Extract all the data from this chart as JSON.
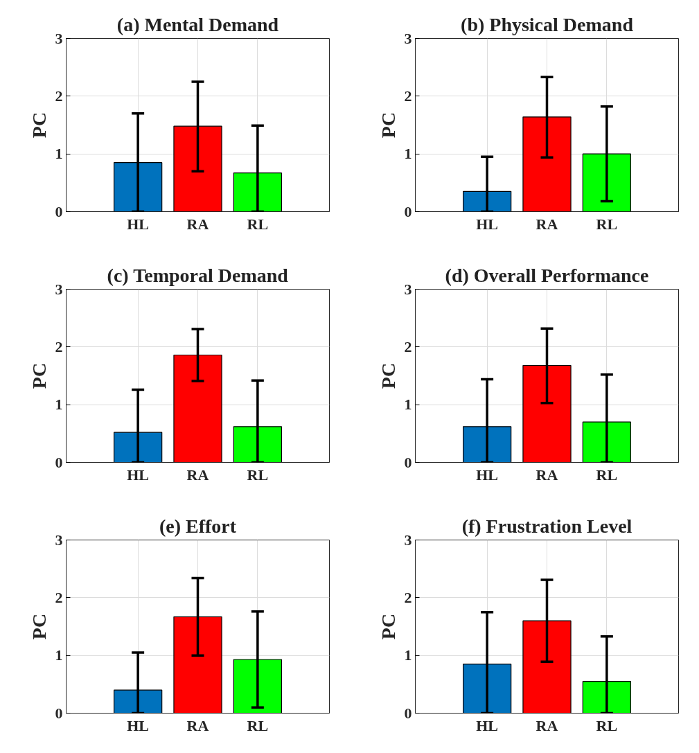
{
  "chart_data": [
    {
      "type": "bar",
      "title": "(a) Mental Demand",
      "ylabel": "PC",
      "categories": [
        "HL",
        "RA",
        "RL"
      ],
      "values": [
        0.85,
        1.48,
        0.67
      ],
      "colors": [
        "#0072bd",
        "#ff0000",
        "#00ff00"
      ],
      "errors": [
        [
          0,
          1.7
        ],
        [
          0.7,
          2.25
        ],
        [
          0,
          1.49
        ]
      ],
      "ylim": [
        0,
        3
      ],
      "yticks": [
        0,
        1,
        2,
        3
      ],
      "grid": true
    },
    {
      "type": "bar",
      "title": "(b) Physical Demand",
      "ylabel": "PC",
      "categories": [
        "HL",
        "RA",
        "RL"
      ],
      "values": [
        0.35,
        1.64,
        1.0
      ],
      "colors": [
        "#0072bd",
        "#ff0000",
        "#00ff00"
      ],
      "errors": [
        [
          0,
          0.95
        ],
        [
          0.94,
          2.33
        ],
        [
          0.18,
          1.82
        ]
      ],
      "ylim": [
        0,
        3
      ],
      "yticks": [
        0,
        1,
        2,
        3
      ],
      "grid": true
    },
    {
      "type": "bar",
      "title": "(c) Temporal Demand",
      "ylabel": "PC",
      "categories": [
        "HL",
        "RA",
        "RL"
      ],
      "values": [
        0.52,
        1.86,
        0.62
      ],
      "colors": [
        "#0072bd",
        "#ff0000",
        "#00ff00"
      ],
      "errors": [
        [
          0,
          1.26
        ],
        [
          1.41,
          2.31
        ],
        [
          0,
          1.42
        ]
      ],
      "ylim": [
        0,
        3
      ],
      "yticks": [
        0,
        1,
        2,
        3
      ],
      "grid": true
    },
    {
      "type": "bar",
      "title": "(d) Overall Performance",
      "ylabel": "PC",
      "categories": [
        "HL",
        "RA",
        "RL"
      ],
      "values": [
        0.62,
        1.68,
        0.7
      ],
      "colors": [
        "#0072bd",
        "#ff0000",
        "#00ff00"
      ],
      "errors": [
        [
          0,
          1.44
        ],
        [
          1.03,
          2.32
        ],
        [
          0,
          1.52
        ]
      ],
      "ylim": [
        0,
        3
      ],
      "yticks": [
        0,
        1,
        2,
        3
      ],
      "grid": true
    },
    {
      "type": "bar",
      "title": "(e) Effort",
      "ylabel": "PC",
      "categories": [
        "HL",
        "RA",
        "RL"
      ],
      "values": [
        0.4,
        1.67,
        0.93
      ],
      "colors": [
        "#0072bd",
        "#ff0000",
        "#00ff00"
      ],
      "errors": [
        [
          0,
          1.05
        ],
        [
          1.0,
          2.34
        ],
        [
          0.1,
          1.76
        ]
      ],
      "ylim": [
        0,
        3
      ],
      "yticks": [
        0,
        1,
        2,
        3
      ],
      "grid": true
    },
    {
      "type": "bar",
      "title": "(f) Frustration Level",
      "ylabel": "PC",
      "categories": [
        "HL",
        "RA",
        "RL"
      ],
      "values": [
        0.85,
        1.6,
        0.55
      ],
      "colors": [
        "#0072bd",
        "#ff0000",
        "#00ff00"
      ],
      "errors": [
        [
          0,
          1.75
        ],
        [
          0.89,
          2.31
        ],
        [
          0,
          1.33
        ]
      ],
      "ylim": [
        0,
        3
      ],
      "yticks": [
        0,
        1,
        2,
        3
      ],
      "grid": true
    }
  ]
}
